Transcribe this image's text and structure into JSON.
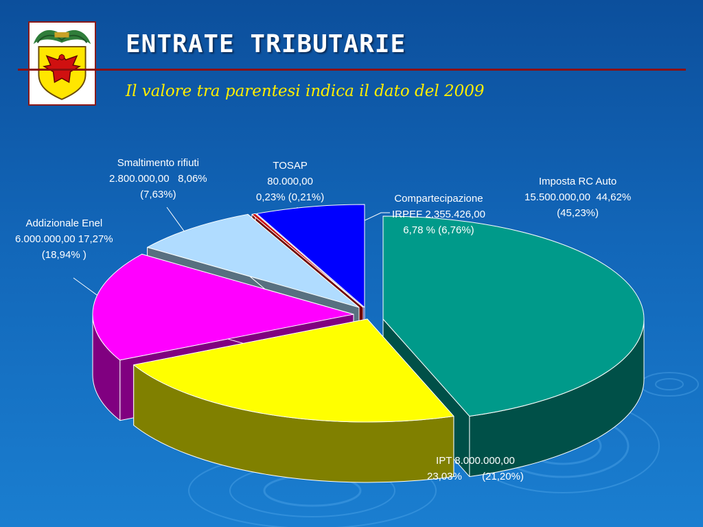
{
  "slide": {
    "title": "ENTRATE TRIBUTARIE",
    "subtitle": "Il valore tra parentesi indica il dato del 2009"
  },
  "colors": {
    "background": "#1266b8",
    "title": "#ffffff",
    "subtitle": "#ffee00",
    "rule": "#8b0f0f"
  },
  "icons": {
    "logo": "coat-of-arms-eagle"
  },
  "chart_data": {
    "type": "pie",
    "style": "3d-exploded",
    "legend": "none",
    "slices": [
      {
        "label": "Imposta RC Auto",
        "amount": "15.500.000,00",
        "value": 44.62,
        "value_text": "44,62%",
        "prev_text": "(45,23%)",
        "prev_value": 45.23,
        "color": "#009a8a",
        "side_color": "#005048"
      },
      {
        "label": "IPT",
        "amount": "8.000.000,00",
        "value": 23.03,
        "value_text": "23,03%",
        "prev_text": "(21,20%)",
        "prev_value": 21.2,
        "color": "#ffff00",
        "side_color": "#808000"
      },
      {
        "label": "Addizionale Enel",
        "amount": "6.000.000,00",
        "value": 17.27,
        "value_text": "17,27%",
        "prev_text": "(18,94% )",
        "prev_value": 18.94,
        "color": "#ff00ff",
        "side_color": "#800080"
      },
      {
        "label": "Smaltimento rifiuti",
        "amount": "2.800.000,00",
        "value": 8.06,
        "value_text": "8,06%",
        "prev_text": "(7,63%)",
        "prev_value": 7.63,
        "color": "#b0dcff",
        "side_color": "#587080"
      },
      {
        "label": "TOSAP",
        "amount": "80.000,00",
        "value": 0.23,
        "value_text": "0,23%",
        "prev_text": "(0,21%)",
        "prev_value": 0.21,
        "color": "#cc0000",
        "side_color": "#700000"
      },
      {
        "label": "Compartecipazione",
        "label2": "IRPEF",
        "amount": "2.355.426,00",
        "value": 6.78,
        "value_text": "6,78 %",
        "prev_text": "(6,76%)",
        "prev_value": 6.76,
        "color": "#0000ff",
        "side_color": "#000080"
      }
    ]
  }
}
